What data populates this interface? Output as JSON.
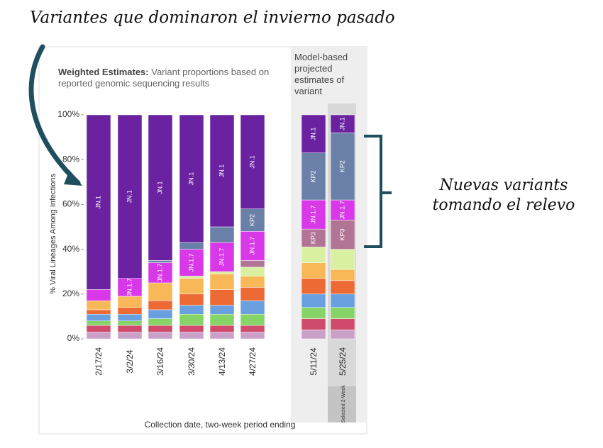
{
  "chart_data": {
    "type": "stacked_bar",
    "title_bold": "Weighted Estimates:",
    "title": "Variant proportions based on reported genomic sequencing results",
    "panel_title": "Model-based projected estimates of variant",
    "y_label": "% Viral Lineages Among Infections",
    "x_label": "Collection date, two-week period ending",
    "selected_label": "Selected 2-Week",
    "annotations": {
      "top": "Variantes que dominaron el invierno pasado",
      "right": "Nuevas variants tomando el relevo"
    },
    "categories": [
      "2/17/24",
      "3/2/24",
      "3/16/24",
      "3/30/24",
      "4/13/24",
      "4/27/24",
      "5/11/24",
      "5/25/24"
    ],
    "ylim": [
      0,
      100
    ],
    "yticks": [
      {
        "value": 0,
        "label": "0%"
      },
      {
        "value": 20,
        "label": "20%"
      },
      {
        "value": 40,
        "label": "40%"
      },
      {
        "value": 60,
        "label": "60%"
      },
      {
        "value": 80,
        "label": "80%"
      },
      {
        "value": 100,
        "label": "100%"
      }
    ],
    "series": [
      {
        "color": "#c9a0c8",
        "values": [
          3,
          3,
          3,
          3,
          3,
          3,
          4,
          4
        ]
      },
      {
        "color": "#d04a6c",
        "values": [
          3,
          3,
          3,
          3,
          3,
          3,
          5,
          5
        ]
      },
      {
        "color": "#86d468",
        "values": [
          2,
          2,
          3,
          5,
          5,
          5,
          5,
          5
        ]
      },
      {
        "color": "#6aa0e0",
        "values": [
          3,
          3,
          4,
          4,
          4,
          6,
          6,
          6
        ]
      },
      {
        "color": "#ee6a34",
        "values": [
          2,
          3,
          4,
          5,
          7,
          6,
          7,
          6
        ]
      },
      {
        "color": "#f8b858",
        "values": [
          4,
          5,
          8,
          7,
          7,
          5,
          7,
          5
        ]
      },
      {
        "color": "#d8f0a0",
        "values": [
          0,
          0,
          0,
          1,
          1,
          4,
          7,
          9
        ]
      },
      {
        "name": "KP3",
        "color": "#b27494",
        "values": [
          0,
          0,
          0,
          0,
          0,
          3,
          8,
          13
        ]
      },
      {
        "name": "JN.1.7",
        "color": "#d838e8",
        "values": [
          5,
          8,
          9,
          12,
          13,
          13,
          13,
          9
        ]
      },
      {
        "name": "KP2",
        "color": "#6a80a8",
        "values": [
          0,
          0,
          1,
          3,
          7,
          10,
          21,
          30
        ]
      },
      {
        "name": "JN.1",
        "color": "#6a22a0",
        "values": [
          78,
          73,
          65,
          57,
          50,
          42,
          17,
          8
        ]
      }
    ]
  }
}
